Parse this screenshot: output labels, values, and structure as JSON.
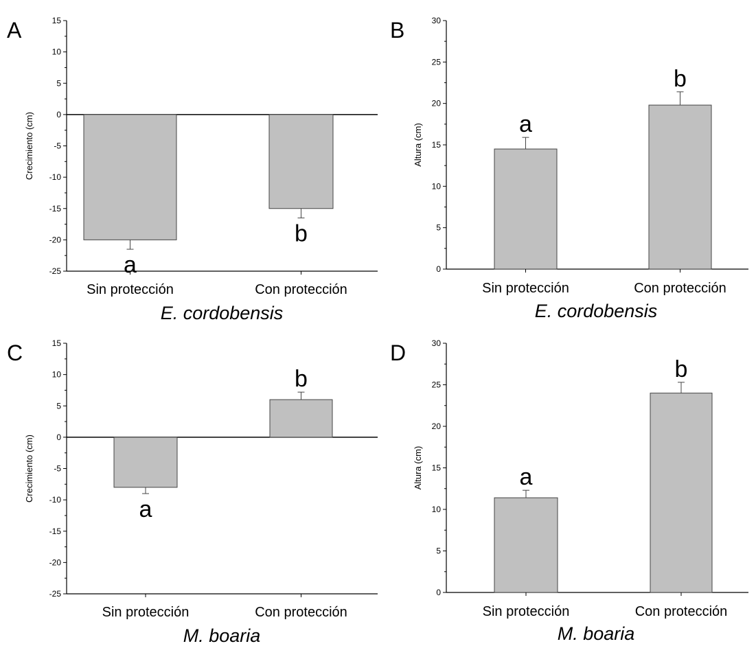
{
  "style": {
    "bar_fill": "#c0c0c0",
    "bar_stroke": "#444444",
    "axis_color": "#000000",
    "error_color": "#444444"
  },
  "chart_data": [
    {
      "panel": "A",
      "type": "bar",
      "categories": [
        "Sin protección",
        "Con protección"
      ],
      "values": [
        -20,
        -15
      ],
      "errors": [
        1.5,
        1.5
      ],
      "sig": [
        "a",
        "b"
      ],
      "ylabel": "Crecimiento (cm)",
      "ylim": [
        -25,
        15
      ],
      "yticks": [
        15,
        10,
        5,
        0,
        -5,
        -10,
        -15,
        -20,
        -25
      ],
      "species": "E. cordobensis"
    },
    {
      "panel": "B",
      "type": "bar",
      "categories": [
        "Sin protección",
        "Con protección"
      ],
      "values": [
        14.5,
        19.8
      ],
      "errors": [
        1.4,
        1.6
      ],
      "sig": [
        "a",
        "b"
      ],
      "ylabel": "Altura (cm)",
      "ylim": [
        0,
        30
      ],
      "yticks": [
        30,
        25,
        20,
        15,
        10,
        5,
        0
      ],
      "species": "E. cordobensis"
    },
    {
      "panel": "C",
      "type": "bar",
      "categories": [
        "Sin protección",
        "Con protección"
      ],
      "values": [
        -8,
        6
      ],
      "errors": [
        1.0,
        1.2
      ],
      "sig": [
        "a",
        "b"
      ],
      "ylabel": "Crecimiento (cm)",
      "ylim": [
        -25,
        15
      ],
      "yticks": [
        15,
        10,
        5,
        0,
        -5,
        -10,
        -15,
        -20,
        -25
      ],
      "species": "M. boaria"
    },
    {
      "panel": "D",
      "type": "bar",
      "categories": [
        "Sin protección",
        "Con protección"
      ],
      "values": [
        11.4,
        24
      ],
      "errors": [
        0.9,
        1.3
      ],
      "sig": [
        "a",
        "b"
      ],
      "ylabel": "Altura (cm)",
      "ylim": [
        0,
        30
      ],
      "yticks": [
        30,
        25,
        20,
        15,
        10,
        5,
        0
      ],
      "species": "M. boaria"
    }
  ]
}
